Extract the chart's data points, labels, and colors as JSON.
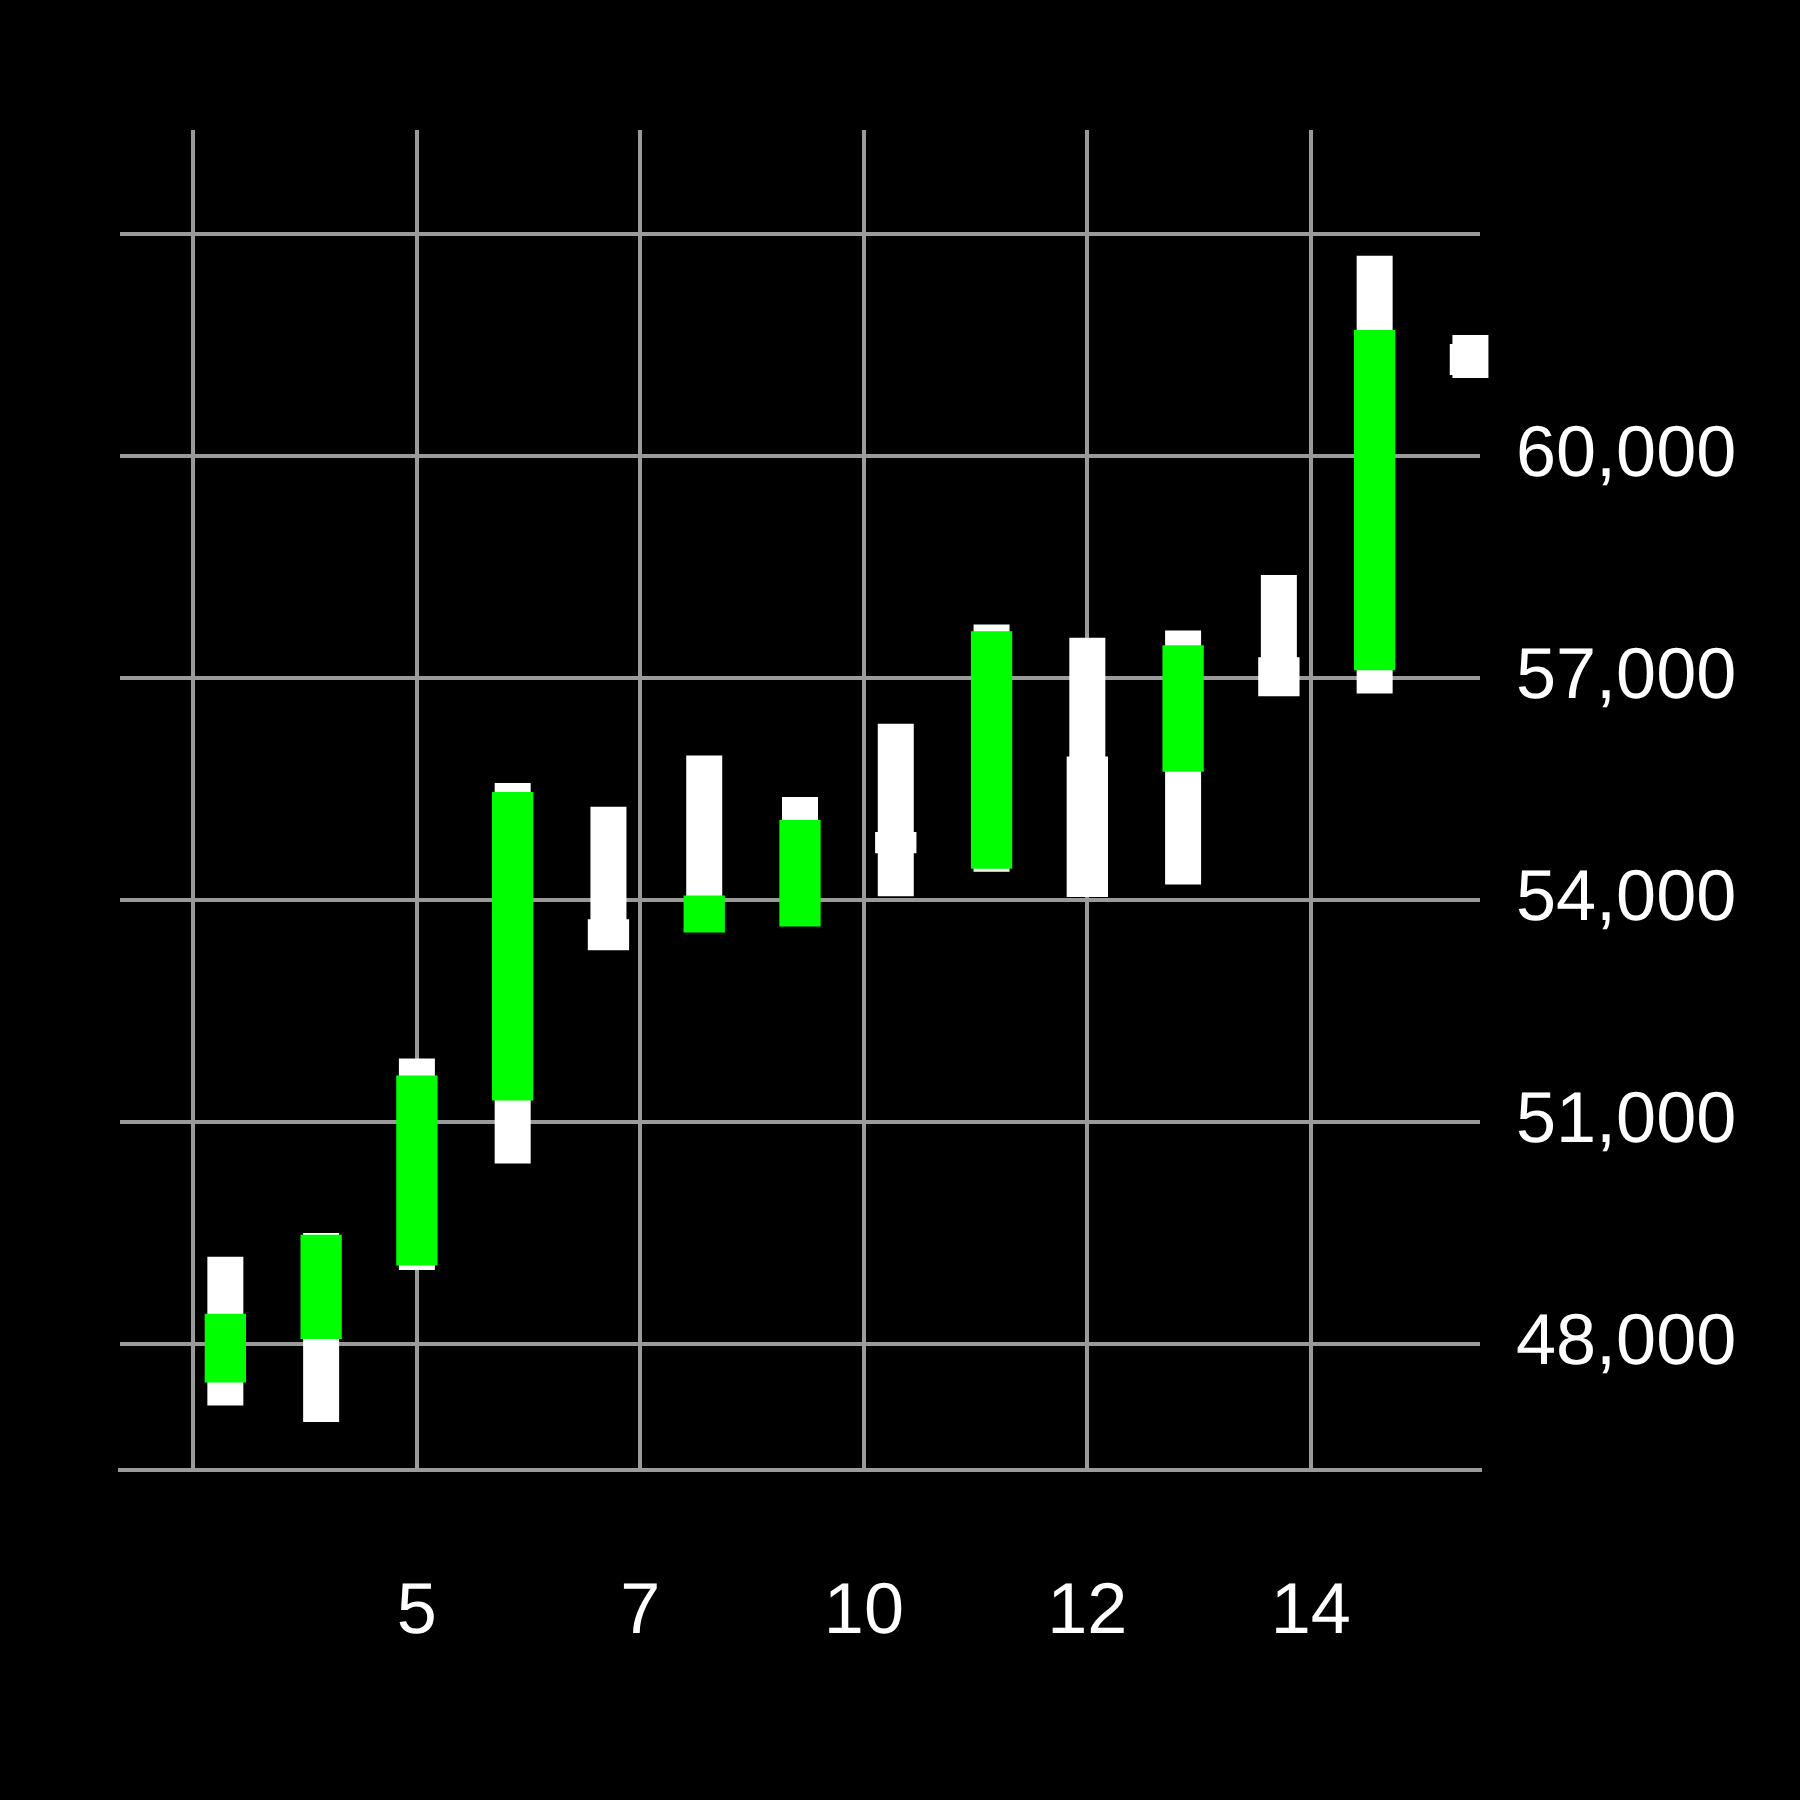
{
  "chart_data": {
    "type": "candlestick",
    "x": [
      3,
      4,
      5,
      6,
      7,
      8,
      9,
      10,
      11,
      12,
      13,
      14,
      15,
      16
    ],
    "ohlc": [
      [
        47490,
        49180,
        47170,
        48400
      ],
      [
        48080,
        49500,
        46950,
        49470
      ],
      [
        49070,
        51860,
        49000,
        51620
      ],
      [
        51300,
        55580,
        50440,
        55450
      ],
      [
        53730,
        55260,
        53330,
        53330
      ],
      [
        53570,
        55950,
        53570,
        54050
      ],
      [
        53650,
        55390,
        53650,
        55070
      ],
      [
        54910,
        56380,
        54050,
        54640
      ],
      [
        54430,
        57720,
        54380,
        57620
      ],
      [
        55930,
        57540,
        54050,
        54050
      ],
      [
        55740,
        57640,
        54210,
        57430
      ],
      [
        57270,
        58390,
        56760,
        56760
      ],
      [
        57110,
        62700,
        56790,
        61690
      ],
      [
        61500,
        61630,
        61050,
        61100
      ]
    ],
    "color": "#ffffff",
    "colors": [
      "#00ff00",
      "#00ff00",
      "#00ff00",
      "#00ff00",
      "#ffffff",
      "#00ff00",
      "#00ff00",
      "#ffffff",
      "#00ff00",
      "#ffffff",
      "#00ff00",
      "#ffffff",
      "#00ff00",
      "#ffffff"
    ],
    "xlim": [
      1.9,
      16.1
    ],
    "xticks": [
      {
        "value": 2.667,
        "label": null
      },
      5,
      {
        "value": 7.333,
        "label": "7"
      },
      {
        "value": 9.667,
        "label": "10"
      },
      12,
      {
        "value": 14.333,
        "label": "14"
      }
    ],
    "ylim": [
      46300,
      64400
    ],
    "yticks": [
      {
        "value": 48000,
        "label": "48,000"
      },
      {
        "value": 51000,
        "label": "51,000"
      },
      {
        "value": 54000,
        "label": "54,000"
      },
      {
        "value": 57000,
        "label": "57,000"
      },
      {
        "value": 60000,
        "label": "60,000"
      },
      {
        "value": 63000,
        "label": null
      }
    ],
    "grid": true,
    "legend": false
  }
}
